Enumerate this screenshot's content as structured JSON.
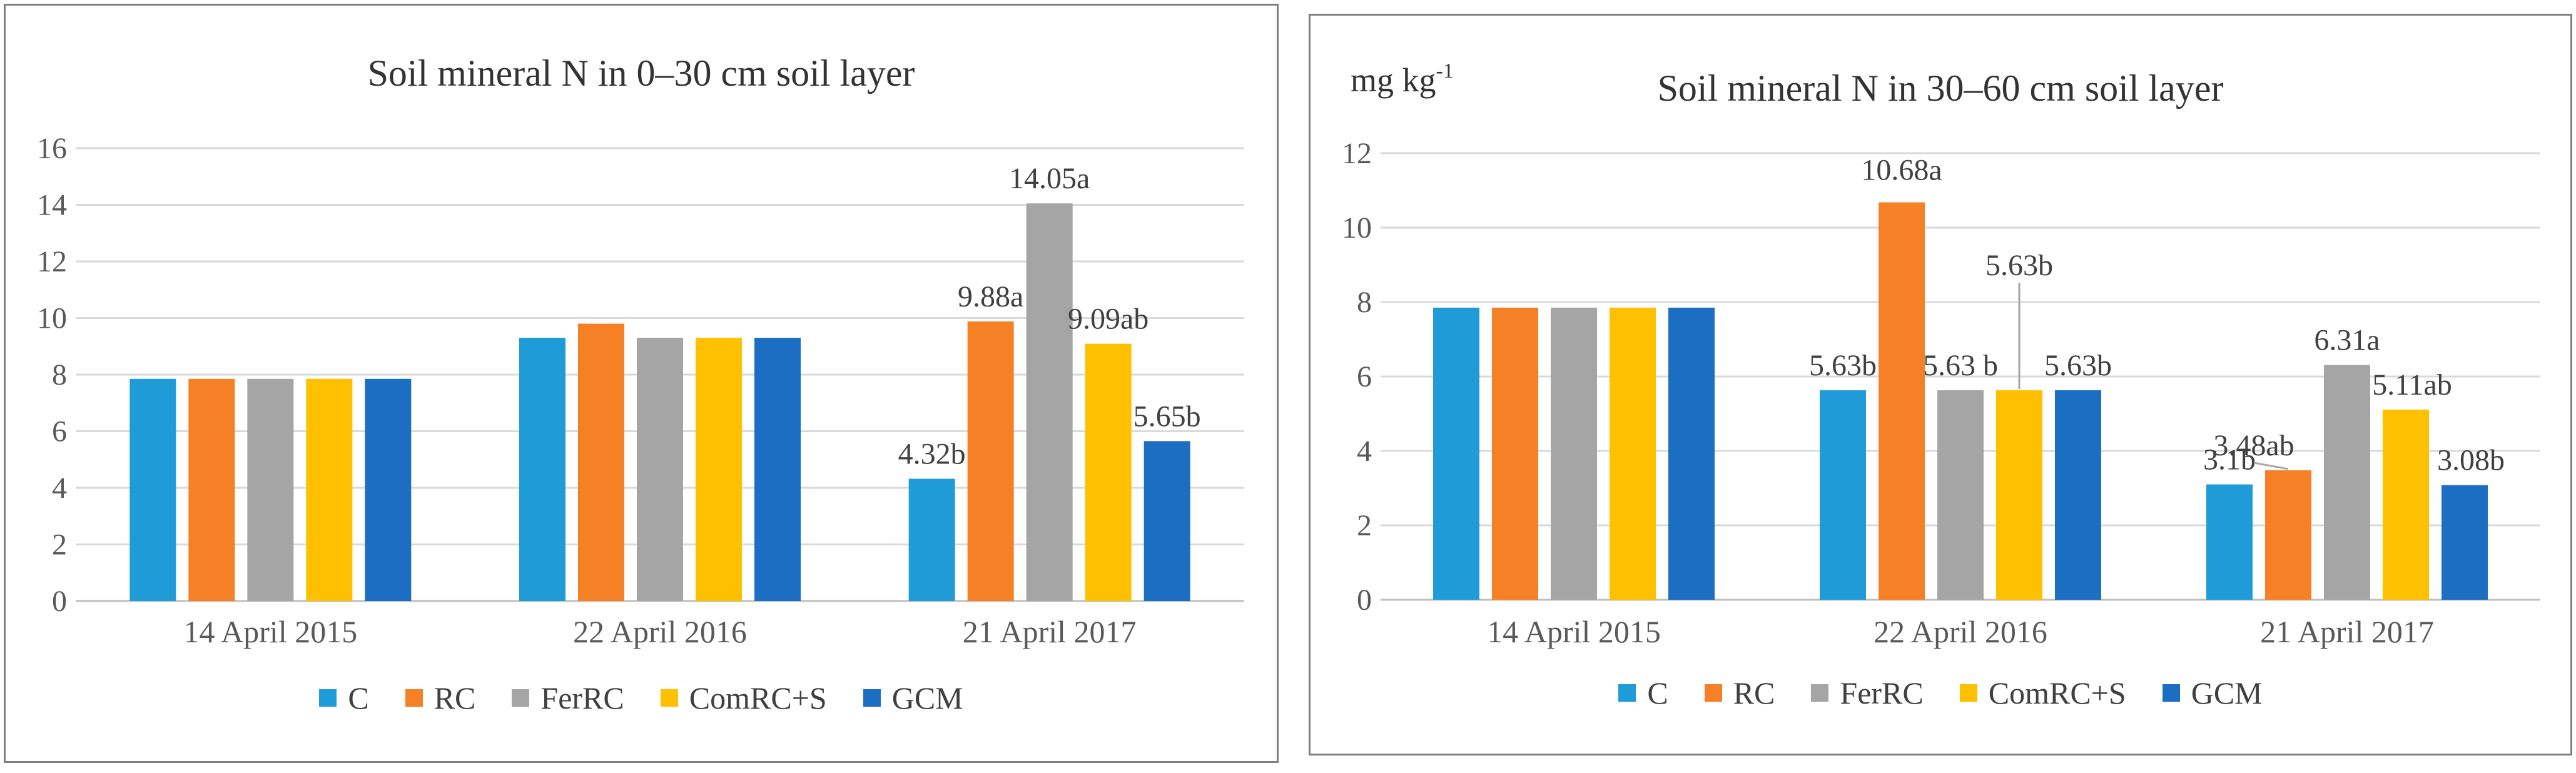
{
  "chart_data": [
    {
      "type": "bar",
      "title": "Soil mineral N in 0–30 cm soil layer",
      "unit": "",
      "categories": [
        "14 April 2015",
        "22 April 2016",
        "21 April 2017"
      ],
      "series": [
        {
          "name": "C",
          "color": "#1F9BD7",
          "values": [
            7.85,
            9.3,
            4.32
          ],
          "labels": [
            "",
            "",
            "4.32b"
          ]
        },
        {
          "name": "RC",
          "color": "#F58025",
          "values": [
            7.85,
            9.8,
            9.88
          ],
          "labels": [
            "",
            "",
            "9.88a"
          ]
        },
        {
          "name": "FerRC",
          "color": "#A5A5A5",
          "values": [
            7.85,
            9.3,
            14.05
          ],
          "labels": [
            "",
            "",
            "14.05a"
          ]
        },
        {
          "name": "ComRC+S",
          "color": "#FFC000",
          "values": [
            7.85,
            9.3,
            9.09
          ],
          "labels": [
            "",
            "",
            "9.09ab"
          ]
        },
        {
          "name": "GCM",
          "color": "#1B6EC2",
          "values": [
            7.85,
            9.3,
            5.65
          ],
          "labels": [
            "",
            "",
            "5.65b"
          ]
        }
      ],
      "ylim": [
        0,
        16
      ],
      "yticks": [
        0,
        2,
        4,
        6,
        8,
        10,
        12,
        14,
        16
      ],
      "grid": true,
      "legend": "bottom"
    },
    {
      "type": "bar",
      "title": "Soil mineral N in 30–60 cm soil layer",
      "unit": "mg kg",
      "unit_exp": "-1",
      "categories": [
        "14 April 2015",
        "22 April 2016",
        "21 April 2017"
      ],
      "series": [
        {
          "name": "C",
          "color": "#1F9BD7",
          "values": [
            7.85,
            5.63,
            3.1
          ],
          "labels": [
            "",
            "5.63b",
            "3.1b"
          ]
        },
        {
          "name": "RC",
          "color": "#F58025",
          "values": [
            7.85,
            10.68,
            3.48
          ],
          "labels": [
            "",
            "10.68a",
            "3.48ab"
          ]
        },
        {
          "name": "FerRC",
          "color": "#A5A5A5",
          "values": [
            7.85,
            5.63,
            6.31
          ],
          "labels": [
            "",
            "5.63 b",
            "6.31a"
          ]
        },
        {
          "name": "ComRC+S",
          "color": "#FFC000",
          "values": [
            7.85,
            5.63,
            5.11
          ],
          "labels": [
            "",
            "5.63b",
            "5.11ab"
          ]
        },
        {
          "name": "GCM",
          "color": "#1B6EC2",
          "values": [
            7.85,
            5.63,
            3.08
          ],
          "labels": [
            "",
            "5.63b",
            "3.08b"
          ]
        }
      ],
      "ylim": [
        0,
        12
      ],
      "yticks": [
        0,
        2,
        4,
        6,
        8,
        10,
        12
      ],
      "grid": true,
      "legend": "bottom"
    }
  ]
}
